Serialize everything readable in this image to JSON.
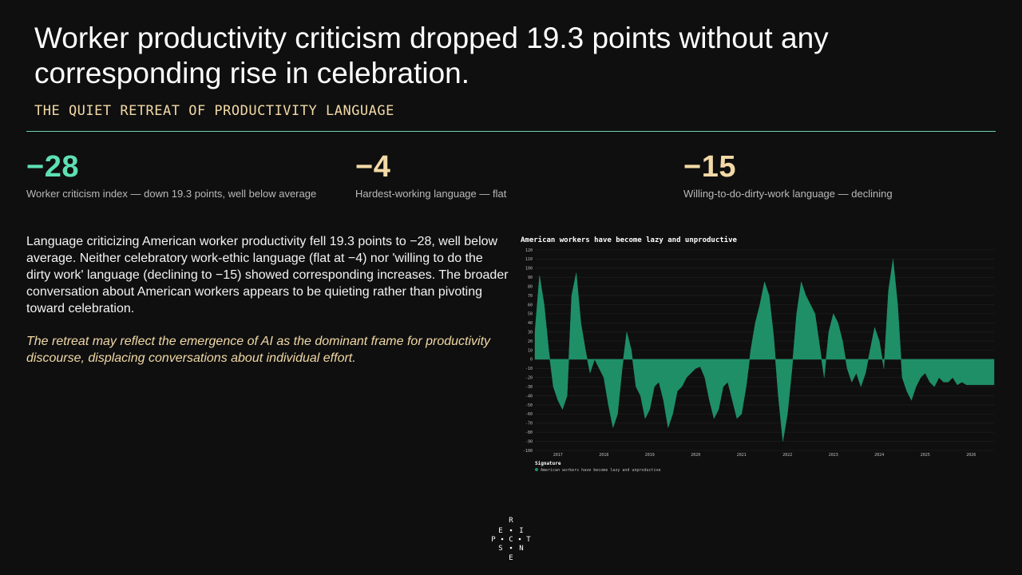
{
  "header": {
    "title": "Worker productivity criticism dropped 19.3 points without any corresponding rise in celebration.",
    "subtitle": "THE QUIET RETREAT OF PRODUCTIVITY LANGUAGE"
  },
  "kpis": [
    {
      "value": "−28",
      "caption": "Worker criticism index — down 19.3 points, well below average",
      "color": "#5ee0b3"
    },
    {
      "value": "−4",
      "caption": "Hardest-working language — flat",
      "color": "#f2d9a6"
    },
    {
      "value": "−15",
      "caption": "Willing-to-do-dirty-work language — declining",
      "color": "#f2d9a6"
    }
  ],
  "body": {
    "paragraph": "Language criticizing American worker productivity fell 19.3 points to −28, well below average. Neither celebratory work-ethic language (flat at −4) nor 'willing to do the dirty work' language (declining to −15) showed corresponding increases. The broader conversation about American workers appears to be quieting rather than pivoting toward celebration.",
    "note": "The retreat may reflect the emergence of AI as the dominant frame for productivity discourse, displacing conversations about individual effort."
  },
  "logo": {
    "glyphs": [
      "R",
      "E",
      "I",
      "P",
      "C",
      "T",
      "S",
      "N",
      "E"
    ]
  },
  "chart_data": {
    "type": "area",
    "title": "American workers have become lazy and unproductive",
    "xlabel": "",
    "ylabel": "",
    "ylim": [
      -100,
      120
    ],
    "yticks": [
      -100,
      -90,
      -80,
      -70,
      -60,
      -50,
      -40,
      -30,
      -20,
      -10,
      0,
      10,
      20,
      30,
      40,
      50,
      60,
      70,
      80,
      90,
      100,
      110,
      120
    ],
    "xlim": [
      2016.5,
      2026.5
    ],
    "xticks": [
      "2017",
      "2018",
      "2019",
      "2020",
      "2021",
      "2022",
      "2023",
      "2024",
      "2025",
      "2026"
    ],
    "grid": true,
    "legend_title": "Signature",
    "legend_position": "bottom-left",
    "color": "#1f8f68",
    "series": [
      {
        "name": "American workers have become lazy and unproductive",
        "x": [
          2016.5,
          2016.6,
          2016.7,
          2016.8,
          2016.9,
          2017.0,
          2017.1,
          2017.2,
          2017.3,
          2017.4,
          2017.5,
          2017.6,
          2017.7,
          2017.8,
          2017.9,
          2018.0,
          2018.1,
          2018.2,
          2018.3,
          2018.4,
          2018.5,
          2018.6,
          2018.7,
          2018.8,
          2018.9,
          2019.0,
          2019.1,
          2019.2,
          2019.3,
          2019.4,
          2019.5,
          2019.6,
          2019.7,
          2019.8,
          2019.9,
          2020.0,
          2020.1,
          2020.2,
          2020.3,
          2020.4,
          2020.5,
          2020.6,
          2020.7,
          2020.8,
          2020.9,
          2021.0,
          2021.1,
          2021.2,
          2021.3,
          2021.4,
          2021.5,
          2021.6,
          2021.7,
          2021.8,
          2021.9,
          2022.0,
          2022.1,
          2022.2,
          2022.3,
          2022.4,
          2022.5,
          2022.6,
          2022.7,
          2022.8,
          2022.9,
          2023.0,
          2023.1,
          2023.2,
          2023.3,
          2023.4,
          2023.5,
          2023.6,
          2023.7,
          2023.8,
          2023.9,
          2024.0,
          2024.1,
          2024.2,
          2024.3,
          2024.4,
          2024.5,
          2024.6,
          2024.7,
          2024.8,
          2024.9,
          2025.0,
          2025.1,
          2025.2,
          2025.3,
          2025.4,
          2025.5,
          2025.6,
          2025.7,
          2025.8,
          2025.9,
          2026.0,
          2026.1,
          2026.2,
          2026.3,
          2026.4,
          2026.5
        ],
        "y": [
          30,
          92,
          60,
          10,
          -30,
          -45,
          -55,
          -40,
          70,
          95,
          40,
          10,
          -15,
          0,
          -10,
          -20,
          -50,
          -75,
          -60,
          -10,
          30,
          10,
          -30,
          -40,
          -65,
          -55,
          -30,
          -25,
          -45,
          -75,
          -60,
          -35,
          -30,
          -20,
          -15,
          -10,
          -8,
          -20,
          -45,
          -65,
          -55,
          -30,
          -25,
          -45,
          -65,
          -60,
          -30,
          10,
          40,
          60,
          85,
          70,
          25,
          -40,
          -90,
          -60,
          -10,
          50,
          85,
          70,
          60,
          50,
          15,
          -20,
          30,
          50,
          40,
          20,
          -10,
          -25,
          -15,
          -30,
          -15,
          10,
          35,
          20,
          -10,
          75,
          110,
          60,
          -20,
          -35,
          -45,
          -30,
          -20,
          -15,
          -25,
          -30,
          -20,
          -25,
          -25,
          -20,
          -28,
          -25,
          -28,
          -28,
          -28,
          -28,
          -28,
          -28,
          -28
        ]
      }
    ]
  }
}
